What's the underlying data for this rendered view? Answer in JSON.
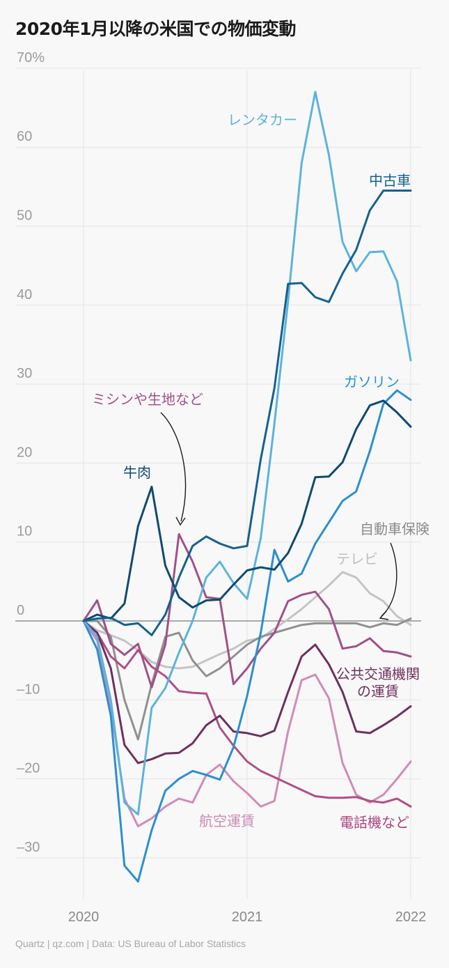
{
  "title": "2020年1月以降の米国での物価変動",
  "footer": "Quartz | qz.com | Data: US Bureau of Labor Statistics",
  "chart_data": {
    "type": "line",
    "title": "2020年1月以降の米国での物価変動",
    "xlabel": "",
    "ylabel": "",
    "ylim": [
      -34,
      70
    ],
    "yticks": [
      70,
      60,
      50,
      40,
      30,
      20,
      10,
      0,
      -10,
      -20,
      -30
    ],
    "ytick_labels": [
      "70%",
      "60",
      "50",
      "40",
      "30",
      "20",
      "10",
      "0",
      "–10",
      "–20",
      "–30"
    ],
    "x_ticks": [
      0,
      12,
      24
    ],
    "x_tick_labels": [
      "2020",
      "2021",
      "2022"
    ],
    "x_range": [
      0,
      24
    ],
    "grid": true,
    "x": [
      0,
      1,
      2,
      3,
      4,
      5,
      6,
      7,
      8,
      9,
      10,
      11,
      12,
      13,
      14,
      15,
      16,
      17,
      18,
      19,
      20,
      21,
      22,
      23,
      24
    ],
    "series": [
      {
        "name": "レンタカー",
        "color": "#5bb3dd",
        "label_color": "#5bb3dd",
        "values": [
          0,
          -2,
          -10,
          -23,
          -24.5,
          -11,
          -8.5,
          -4,
          0,
          5.5,
          7.5,
          4.8,
          2.8,
          10.5,
          25,
          40.5,
          58,
          67,
          59,
          48,
          44.3,
          46.7,
          46.8,
          43,
          33
        ]
      },
      {
        "name": "中古車",
        "color": "#14618f",
        "label_color": "#14618f",
        "values": [
          0,
          0.3,
          0.4,
          -0.5,
          -0.3,
          -1.8,
          0.8,
          5.5,
          9.5,
          10.7,
          9.8,
          9.2,
          9.5,
          20.5,
          29.5,
          42.7,
          42.8,
          41,
          40.4,
          44,
          47,
          52,
          54.5,
          54.5,
          54.5
        ]
      },
      {
        "name": "ガソリン",
        "color": "#2a8fcf",
        "label_color": "#2a8fcf",
        "values": [
          0,
          -3.6,
          -12,
          -31,
          -33,
          -26.5,
          -21.5,
          -20,
          -19,
          -19.5,
          -20.1,
          -16,
          -9.5,
          -1.5,
          9,
          5,
          6,
          9.8,
          12.5,
          15.2,
          16.4,
          21.5,
          27.5,
          29.2,
          28
        ]
      },
      {
        "name": "牛肉",
        "color": "#0e4a72",
        "label_color": "#0e4a72",
        "values": [
          0,
          0.8,
          0.3,
          2.2,
          12,
          17,
          7,
          3,
          1.7,
          2.6,
          2.7,
          4.6,
          6.4,
          6.8,
          6.5,
          8.6,
          12.3,
          18.2,
          18.3,
          20.1,
          24.3,
          27.3,
          27.9,
          26.4,
          24.6
        ]
      },
      {
        "name": "ミシンや生地など",
        "color": "#a05088",
        "label_color": "#a05088",
        "values": [
          0,
          2.6,
          -2.9,
          -4.3,
          -2.9,
          -8.4,
          -3,
          11,
          7.5,
          3,
          2.8,
          -8,
          -6,
          -3.5,
          -1.5,
          2.5,
          3.3,
          3.7,
          1.5,
          -3.5,
          -3.2,
          -2.2,
          -3.8,
          -4,
          -4.5
        ]
      },
      {
        "name": "自動車保険",
        "color": "#909090",
        "label_color": "#8a8a8a",
        "values": [
          0,
          0,
          -2,
          -10,
          -15,
          -8,
          -2,
          -1.5,
          -5,
          -7,
          -6,
          -4.5,
          -3,
          -2,
          -1.5,
          -1,
          -0.5,
          -0.3,
          -0.3,
          -0.3,
          -0.3,
          -0.8,
          -0.3,
          -0.5,
          0.3
        ]
      },
      {
        "name": "テレビ",
        "color": "#c4c4c4",
        "label_color": "#bfbfbf",
        "values": [
          0,
          -1.2,
          -1.8,
          -2.5,
          -3.7,
          -5.2,
          -5.8,
          -6,
          -5.8,
          -5,
          -4.2,
          -3.5,
          -2.5,
          -2.2,
          -1,
          0.2,
          1.5,
          3,
          4.5,
          6.2,
          5.5,
          3.5,
          2.5,
          0.6,
          -0.5
        ]
      },
      {
        "name": "公共交通機関の運賃",
        "color": "#6e2f5c",
        "label_color": "#6e2f5c",
        "values": [
          0,
          -1.5,
          -6,
          -15.7,
          -18,
          -17.5,
          -16.8,
          -16.7,
          -15.5,
          -13.2,
          -12,
          -14,
          -14.2,
          -14.6,
          -13.9,
          -9,
          -4.5,
          -3,
          -5.5,
          -9,
          -14,
          -14.2,
          -13.2,
          -12.1,
          -10.8
        ]
      },
      {
        "name": "航空運賃",
        "color": "#d08cb6",
        "label_color": "#c98ab3",
        "values": [
          0,
          -2.5,
          -11,
          -22.5,
          -26,
          -25,
          -23.5,
          -22.5,
          -23,
          -19.5,
          -18.2,
          -20.3,
          -21.8,
          -23.5,
          -22.8,
          -14,
          -7.5,
          -6.8,
          -9.8,
          -18,
          -22,
          -23,
          -22,
          -20,
          -17.8
        ]
      },
      {
        "name": "電話機など",
        "color": "#b04e86",
        "label_color": "#a6457d",
        "values": [
          0,
          -1.5,
          -4.5,
          -6,
          -3.7,
          -5.8,
          -7,
          -8.9,
          -9.1,
          -9.2,
          -13.5,
          -15.8,
          -17.8,
          -19,
          -19.8,
          -20.6,
          -21.4,
          -22.2,
          -22.4,
          -22.4,
          -22.3,
          -22.8,
          -23,
          -22.5,
          -23.5
        ]
      }
    ],
    "annotations": [
      {
        "text": "ミシンや生地など",
        "arrow": true
      },
      {
        "text": "自動車保険",
        "arrow": true
      }
    ]
  }
}
